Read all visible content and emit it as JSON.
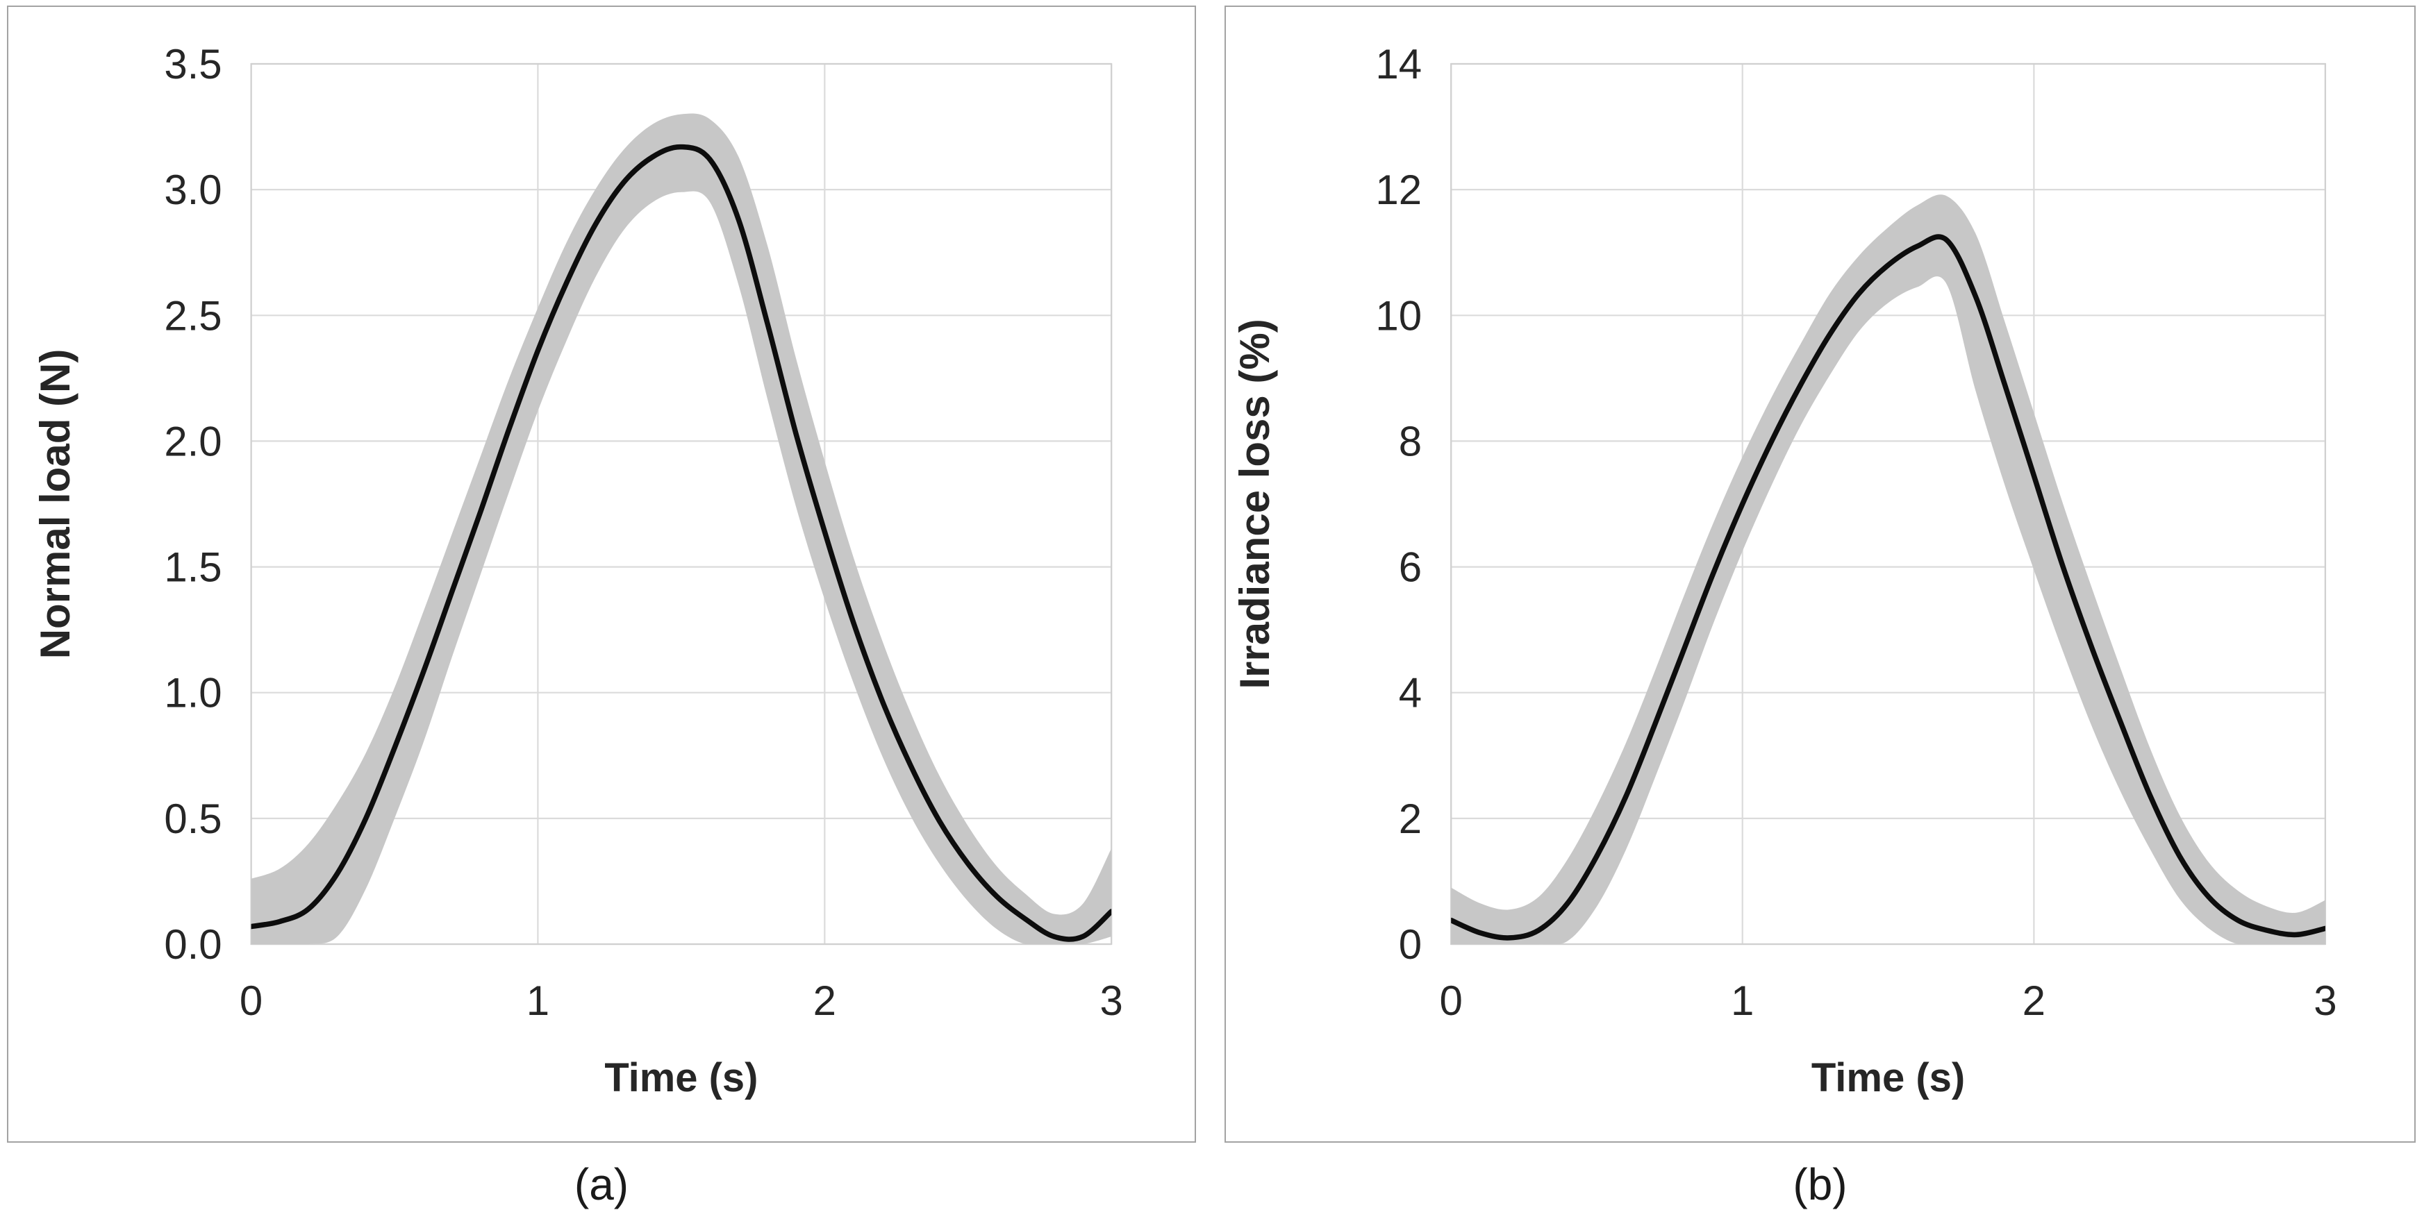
{
  "figure": {
    "panels": [
      {
        "caption": "(a)"
      },
      {
        "caption": "(b)"
      }
    ]
  },
  "colors": {
    "line": "#0d0d0d",
    "band": "#c7c7c7",
    "grid": "#dbdbdb",
    "plot_border": "#d0d0d0",
    "axis_text": "#262626",
    "panel_border": "#a3a3a3",
    "background": "#ffffff"
  },
  "chart_data": [
    {
      "type": "line",
      "title": "",
      "xlabel": "Time (s)",
      "ylabel": "Normal load (N)",
      "xlim": [
        0,
        3
      ],
      "ylim": [
        0,
        3.5
      ],
      "grid": true,
      "legend_position": "none",
      "xticks": [
        0,
        1,
        2,
        3
      ],
      "xtick_labels": [
        "0",
        "1",
        "2",
        "3"
      ],
      "yticks": [
        0,
        0.5,
        1,
        1.5,
        2,
        2.5,
        3,
        3.5
      ],
      "ytick_labels": [
        "0.0",
        "0.5",
        "1.0",
        "1.5",
        "2.0",
        "2.5",
        "3.0",
        "3.5"
      ],
      "x": [
        0,
        0.1,
        0.2,
        0.3,
        0.4,
        0.5,
        0.6,
        0.7,
        0.8,
        0.9,
        1,
        1.1,
        1.2,
        1.3,
        1.4,
        1.5,
        1.6,
        1.7,
        1.8,
        1.9,
        2,
        2.1,
        2.2,
        2.3,
        2.4,
        2.5,
        2.6,
        2.7,
        2.8,
        2.9,
        3
      ],
      "series": [
        {
          "name": "mean normal load",
          "values": [
            0.07,
            0.09,
            0.14,
            0.28,
            0.5,
            0.78,
            1.08,
            1.4,
            1.72,
            2.05,
            2.36,
            2.63,
            2.86,
            3.03,
            3.13,
            3.17,
            3.12,
            2.88,
            2.47,
            2.03,
            1.64,
            1.28,
            0.97,
            0.71,
            0.49,
            0.32,
            0.19,
            0.1,
            0.03,
            0.03,
            0.13
          ]
        },
        {
          "name": "band upper",
          "values": [
            0.26,
            0.3,
            0.4,
            0.56,
            0.76,
            1.02,
            1.32,
            1.63,
            1.94,
            2.25,
            2.53,
            2.79,
            3.0,
            3.16,
            3.26,
            3.3,
            3.28,
            3.13,
            2.78,
            2.33,
            1.92,
            1.54,
            1.21,
            0.92,
            0.67,
            0.47,
            0.31,
            0.2,
            0.12,
            0.16,
            0.38
          ]
        },
        {
          "name": "band lower",
          "values": [
            0,
            0,
            0,
            0.03,
            0.22,
            0.5,
            0.8,
            1.14,
            1.47,
            1.8,
            2.12,
            2.4,
            2.65,
            2.84,
            2.95,
            2.99,
            2.95,
            2.62,
            2.17,
            1.74,
            1.37,
            1.04,
            0.75,
            0.51,
            0.32,
            0.17,
            0.06,
            0,
            0,
            0,
            0.03
          ]
        }
      ]
    },
    {
      "type": "line",
      "title": "",
      "xlabel": "Time (s)",
      "ylabel": "Irradiance loss (%)",
      "xlim": [
        0,
        3
      ],
      "ylim": [
        0,
        14
      ],
      "grid": true,
      "legend_position": "none",
      "xticks": [
        0,
        1,
        2,
        3
      ],
      "xtick_labels": [
        "0",
        "1",
        "2",
        "3"
      ],
      "yticks": [
        0,
        2,
        4,
        6,
        8,
        10,
        12,
        14
      ],
      "ytick_labels": [
        "0",
        "2",
        "4",
        "6",
        "8",
        "10",
        "12",
        "14"
      ],
      "x": [
        0,
        0.1,
        0.2,
        0.3,
        0.4,
        0.5,
        0.6,
        0.7,
        0.8,
        0.9,
        1,
        1.1,
        1.2,
        1.3,
        1.4,
        1.5,
        1.6,
        1.7,
        1.8,
        1.9,
        2,
        2.1,
        2.2,
        2.3,
        2.4,
        2.5,
        2.6,
        2.7,
        2.8,
        2.9,
        3
      ],
      "series": [
        {
          "name": "mean irradiance loss",
          "values": [
            0.38,
            0.18,
            0.1,
            0.22,
            0.65,
            1.4,
            2.35,
            3.5,
            4.7,
            5.9,
            7.0,
            8.0,
            8.9,
            9.7,
            10.35,
            10.8,
            11.1,
            11.2,
            10.3,
            8.9,
            7.45,
            6.0,
            4.7,
            3.5,
            2.35,
            1.4,
            0.75,
            0.38,
            0.22,
            0.15,
            0.25
          ]
        },
        {
          "name": "band upper",
          "values": [
            0.9,
            0.65,
            0.55,
            0.75,
            1.35,
            2.2,
            3.2,
            4.35,
            5.55,
            6.7,
            7.75,
            8.7,
            9.55,
            10.35,
            10.95,
            11.4,
            11.75,
            11.9,
            11.3,
            9.9,
            8.45,
            7.0,
            5.65,
            4.35,
            3.1,
            2.05,
            1.3,
            0.85,
            0.6,
            0.5,
            0.7
          ]
        },
        {
          "name": "band lower",
          "values": [
            0,
            0,
            0,
            0,
            0.05,
            0.6,
            1.5,
            2.65,
            3.85,
            5.1,
            6.25,
            7.3,
            8.25,
            9.05,
            9.75,
            10.2,
            10.45,
            10.5,
            8.8,
            7.3,
            5.95,
            4.65,
            3.45,
            2.4,
            1.5,
            0.72,
            0.25,
            0,
            0,
            0,
            0
          ]
        }
      ]
    }
  ]
}
